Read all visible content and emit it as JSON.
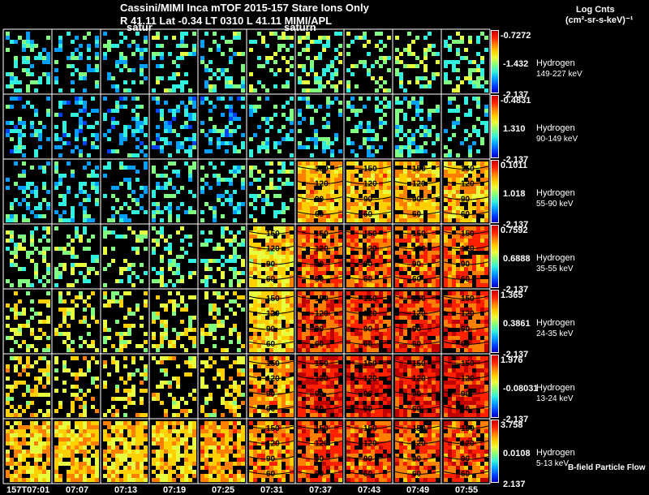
{
  "header": {
    "title_line": "Cassini/MIMI Inca mTOF  2015-157   Stare   Ions Only",
    "info_line": "R        41.11 Lat -0.34 LT 0310 L        41.11  MIMI/APL",
    "overlay_left": "satur",
    "overlay_right": "saturn",
    "units_title": "Log Cnts",
    "units_sub": "(cm²-sr-s-keV)⁻¹"
  },
  "footer": {
    "legend_note": "B-field Particle Flow"
  },
  "chart_data": {
    "type": "heatmap",
    "title": "Cassini/MIMI Inca mTOF  2015-157   Stare   Ions Only",
    "x_tick_labels": [
      "157T07:01",
      "07:07",
      "07:13",
      "07:19",
      "07:25",
      "07:31",
      "07:37",
      "07:43",
      "07:49",
      "07:55"
    ],
    "contour_labels": [
      "150",
      "120",
      "90",
      "60"
    ],
    "colormap": [
      "#c00000",
      "#ff2000",
      "#ff8000",
      "#ffd000",
      "#e8ff40",
      "#80ff80",
      "#30f0e0",
      "#00a0ff",
      "#0040ff",
      "#0000c0"
    ],
    "rows": [
      {
        "species": "Hydrogen",
        "energy": "149-227 keV",
        "cbar_max": "-0.7272",
        "cbar_mid": "-1.432",
        "cbar_min": "-2.137",
        "level": [
          0.35,
          0.35,
          0.35,
          0.4,
          0.4,
          0.45,
          0.45,
          0.45,
          0.45,
          0.45
        ]
      },
      {
        "species": "Hydrogen",
        "energy": "90-149 keV",
        "cbar_max": "-0.4831",
        "cbar_mid": "1.310",
        "cbar_min": "-2.137",
        "level": [
          0.3,
          0.3,
          0.3,
          0.3,
          0.3,
          0.35,
          0.35,
          0.35,
          0.35,
          0.35
        ]
      },
      {
        "species": "Hydrogen",
        "energy": "55-90 keV",
        "cbar_max": "0.1011",
        "cbar_mid": "1.018",
        "cbar_min": "-2.137",
        "level": [
          0.35,
          0.35,
          0.35,
          0.35,
          0.35,
          0.42,
          0.68,
          0.68,
          0.68,
          0.68
        ]
      },
      {
        "species": "Hydrogen",
        "energy": "35-55 keV",
        "cbar_max": "0.7592",
        "cbar_mid": "0.6888",
        "cbar_min": "-2.137",
        "level": [
          0.45,
          0.45,
          0.45,
          0.45,
          0.45,
          0.62,
          0.78,
          0.78,
          0.78,
          0.78
        ]
      },
      {
        "species": "Hydrogen",
        "energy": "24-35 keV",
        "cbar_max": "1.365",
        "cbar_mid": "0.3861",
        "cbar_min": "-2.137",
        "level": [
          0.55,
          0.55,
          0.55,
          0.55,
          0.55,
          0.65,
          0.83,
          0.83,
          0.83,
          0.83
        ]
      },
      {
        "species": "Hydrogen",
        "energy": "13-24 keV",
        "cbar_max": "1.976",
        "cbar_mid": "-0.08031",
        "cbar_min": "-2.137",
        "level": [
          0.6,
          0.6,
          0.6,
          0.6,
          0.6,
          0.7,
          0.88,
          0.88,
          0.88,
          0.88
        ]
      },
      {
        "species": "Hydrogen",
        "energy": "5-13 keV",
        "cbar_max": "3.758",
        "cbar_mid": "0.0108",
        "cbar_min": "2.137",
        "level": [
          0.65,
          0.65,
          0.65,
          0.65,
          0.7,
          0.75,
          0.8,
          0.8,
          0.8,
          0.8
        ]
      }
    ]
  }
}
